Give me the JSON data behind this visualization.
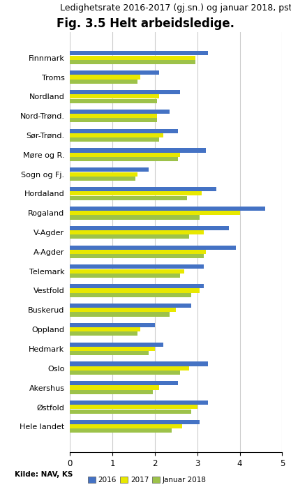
{
  "title": "Fig. 3.5 Helt arbeidsledige.",
  "subtitle": "Ledighetsrate 2016-2017 (gj.sn.) og januar 2018, pst",
  "categories": [
    "Finnmark",
    "Troms",
    "Nordland",
    "Nord-Trønd.",
    "Sør-Trønd.",
    "Møre og R.",
    "Sogn og Fj.",
    "Hordaland",
    "Rogaland",
    "V-Agder",
    "A-Agder",
    "Telemark",
    "Vestfold",
    "Buskerud",
    "Oppland",
    "Hedmark",
    "Oslo",
    "Akershus",
    "Østfold",
    "Hele landet"
  ],
  "values_2016": [
    3.25,
    2.1,
    2.6,
    2.35,
    2.55,
    3.2,
    1.85,
    3.45,
    4.6,
    3.75,
    3.9,
    3.15,
    3.15,
    2.85,
    2.0,
    2.2,
    3.25,
    2.55,
    3.25,
    3.05
  ],
  "values_2017": [
    2.95,
    1.65,
    2.1,
    2.05,
    2.2,
    2.6,
    1.6,
    3.1,
    4.0,
    3.15,
    3.2,
    2.7,
    3.05,
    2.5,
    1.65,
    2.0,
    2.8,
    2.1,
    3.0,
    2.65
  ],
  "values_jan2018": [
    2.95,
    1.6,
    2.05,
    2.05,
    2.1,
    2.55,
    1.55,
    2.75,
    3.05,
    2.8,
    3.15,
    2.6,
    2.85,
    2.35,
    1.6,
    1.85,
    2.6,
    1.95,
    2.85,
    2.4
  ],
  "color_2016": "#4472c4",
  "color_2017": "#e8e800",
  "color_jan2018": "#9dc24a",
  "xlim": [
    0,
    5
  ],
  "xticks": [
    0,
    1,
    2,
    3,
    4,
    5
  ],
  "source": "Kilde: NAV, KS",
  "legend_labels": [
    "2016",
    "2017",
    "Januar 2018"
  ],
  "title_fontsize": 12,
  "subtitle_fontsize": 9,
  "label_fontsize": 8,
  "tick_fontsize": 8.5,
  "bar_height": 0.22,
  "bar_gap": 0.005
}
